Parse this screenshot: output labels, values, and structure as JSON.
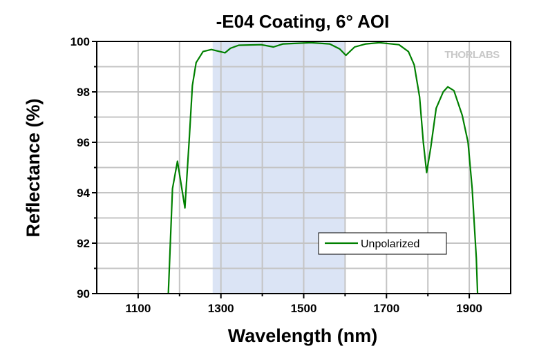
{
  "chart_data": {
    "type": "line",
    "title": "-E04 Coating, 6° AOI",
    "xlabel": "Wavelength (nm)",
    "ylabel": "Reflectance (%)",
    "xlim": [
      1000,
      2000
    ],
    "ylim": [
      90,
      100
    ],
    "xticks": [
      1100,
      1300,
      1500,
      1700,
      1900
    ],
    "yticks": [
      90,
      92,
      94,
      96,
      98,
      100
    ],
    "grid": true,
    "legend_position": "bottom-right",
    "watermark": "THORLABS",
    "shaded_band": {
      "x0": 1280,
      "x1": 1600,
      "color": "#dbe4f5"
    },
    "series": [
      {
        "name": "Unpolarized",
        "color": "#008000",
        "x": [
          1173,
          1183,
          1195,
          1213,
          1223,
          1231,
          1240,
          1257,
          1277,
          1297,
          1310,
          1323,
          1343,
          1397,
          1427,
          1450,
          1517,
          1563,
          1587,
          1602,
          1623,
          1650,
          1683,
          1730,
          1753,
          1767,
          1780,
          1789,
          1797,
          1807,
          1820,
          1837,
          1848,
          1863,
          1883,
          1897,
          1907,
          1917,
          1920
        ],
        "y": [
          90,
          94.16,
          95.25,
          93.4,
          96.0,
          98.25,
          99.16,
          99.6,
          99.68,
          99.6,
          99.55,
          99.73,
          99.85,
          99.87,
          99.78,
          99.9,
          99.95,
          99.9,
          99.7,
          99.45,
          99.78,
          99.9,
          99.95,
          99.87,
          99.6,
          99.07,
          97.8,
          96.0,
          94.8,
          95.8,
          97.35,
          98.0,
          98.2,
          98.05,
          97.07,
          96.0,
          94.16,
          91.4,
          90
        ]
      }
    ]
  }
}
